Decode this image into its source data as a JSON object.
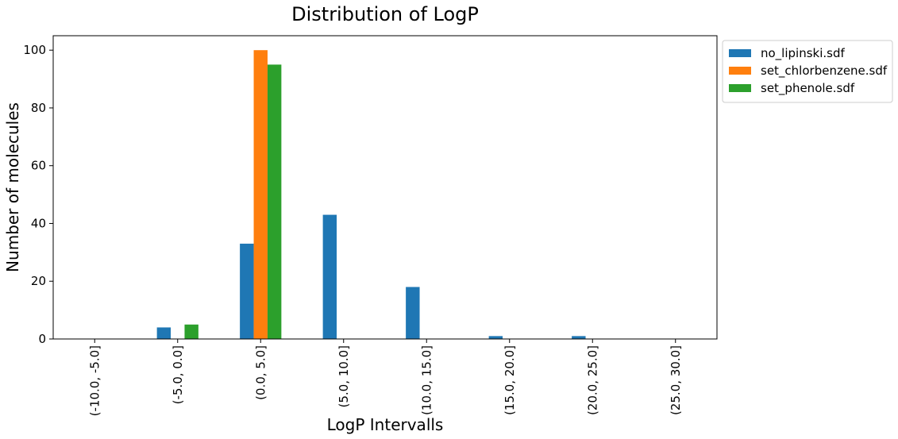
{
  "chart_data": {
    "type": "bar",
    "title": "Distribution of LogP",
    "xlabel": "LogP Intervalls",
    "ylabel": "Number of molecules",
    "categories": [
      "(-10.0, -5.0]",
      "(-5.0, 0.0]",
      "(0.0, 5.0]",
      "(5.0, 10.0]",
      "(10.0, 15.0]",
      "(15.0, 20.0]",
      "(20.0, 25.0]",
      "(25.0, 30.0]"
    ],
    "series": [
      {
        "name": "no_lipinski.sdf",
        "color": "#1f77b4",
        "values": [
          0,
          4,
          33,
          43,
          18,
          1,
          1,
          0
        ]
      },
      {
        "name": "set_chlorbenzene.sdf",
        "color": "#ff7f0e",
        "values": [
          0,
          0,
          100,
          0,
          0,
          0,
          0,
          0
        ]
      },
      {
        "name": "set_phenole.sdf",
        "color": "#2ca02c",
        "values": [
          0,
          5,
          95,
          0,
          0,
          0,
          0,
          0
        ]
      }
    ],
    "ylim": [
      0,
      105
    ],
    "yticks": [
      0,
      20,
      40,
      60,
      80,
      100
    ],
    "grid": false,
    "legend_position": "outside-upper-right"
  }
}
